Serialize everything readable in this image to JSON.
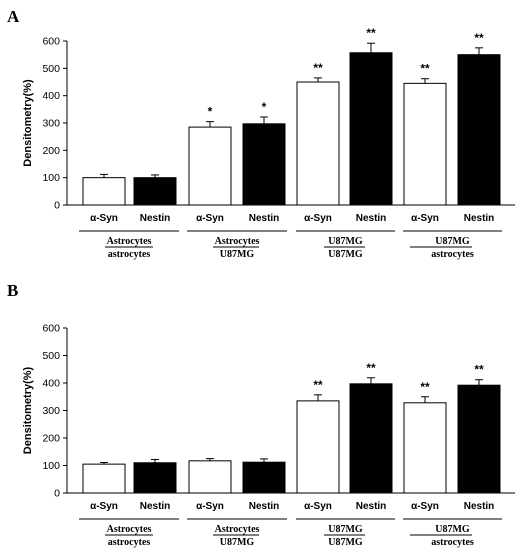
{
  "chart_data": [
    {
      "type": "bar",
      "panel": "A",
      "ylabel": "Densitometry(%)",
      "ylim": [
        0,
        600
      ],
      "yticks": [
        0,
        100,
        200,
        300,
        400,
        500,
        600
      ],
      "categories": [
        "α-Syn",
        "Nestin",
        "α-Syn",
        "Nestin",
        "α-Syn",
        "Nestin",
        "α-Syn",
        "Nestin"
      ],
      "values": [
        100,
        100,
        285,
        297,
        450,
        557,
        445,
        550
      ],
      "errors": [
        12,
        10,
        20,
        25,
        15,
        35,
        17,
        25
      ],
      "fill": [
        "white",
        "black",
        "white",
        "black",
        "white",
        "black",
        "white",
        "black"
      ],
      "significance": [
        "",
        "",
        "*",
        "*",
        "**",
        "**",
        "**",
        "**"
      ],
      "groups": [
        {
          "top": "Astrocytes",
          "bottom": "astrocytes"
        },
        {
          "top": "Astrocytes",
          "bottom": "U87MG"
        },
        {
          "top": "U87MG",
          "bottom": "U87MG"
        },
        {
          "top": "U87MG",
          "bottom": "astrocytes"
        }
      ]
    },
    {
      "type": "bar",
      "panel": "B",
      "ylabel": "Densitometry(%)",
      "ylim": [
        0,
        600
      ],
      "yticks": [
        0,
        100,
        200,
        300,
        400,
        500,
        600
      ],
      "categories": [
        "α-Syn",
        "Nestin",
        "α-Syn",
        "Nestin",
        "α-Syn",
        "Nestin",
        "α-Syn",
        "Nestin"
      ],
      "values": [
        105,
        110,
        117,
        112,
        335,
        397,
        328,
        392
      ],
      "errors": [
        6,
        12,
        8,
        12,
        22,
        22,
        22,
        20
      ],
      "fill": [
        "white",
        "black",
        "white",
        "black",
        "white",
        "black",
        "white",
        "black"
      ],
      "significance": [
        "",
        "",
        "",
        "",
        "**",
        "**",
        "**",
        "**"
      ],
      "groups": [
        {
          "top": "Astrocytes",
          "bottom": "astrocytes"
        },
        {
          "top": "Astrocytes",
          "bottom": "U87MG"
        },
        {
          "top": "U87MG",
          "bottom": "U87MG"
        },
        {
          "top": "U87MG",
          "bottom": "astrocytes"
        }
      ]
    }
  ]
}
